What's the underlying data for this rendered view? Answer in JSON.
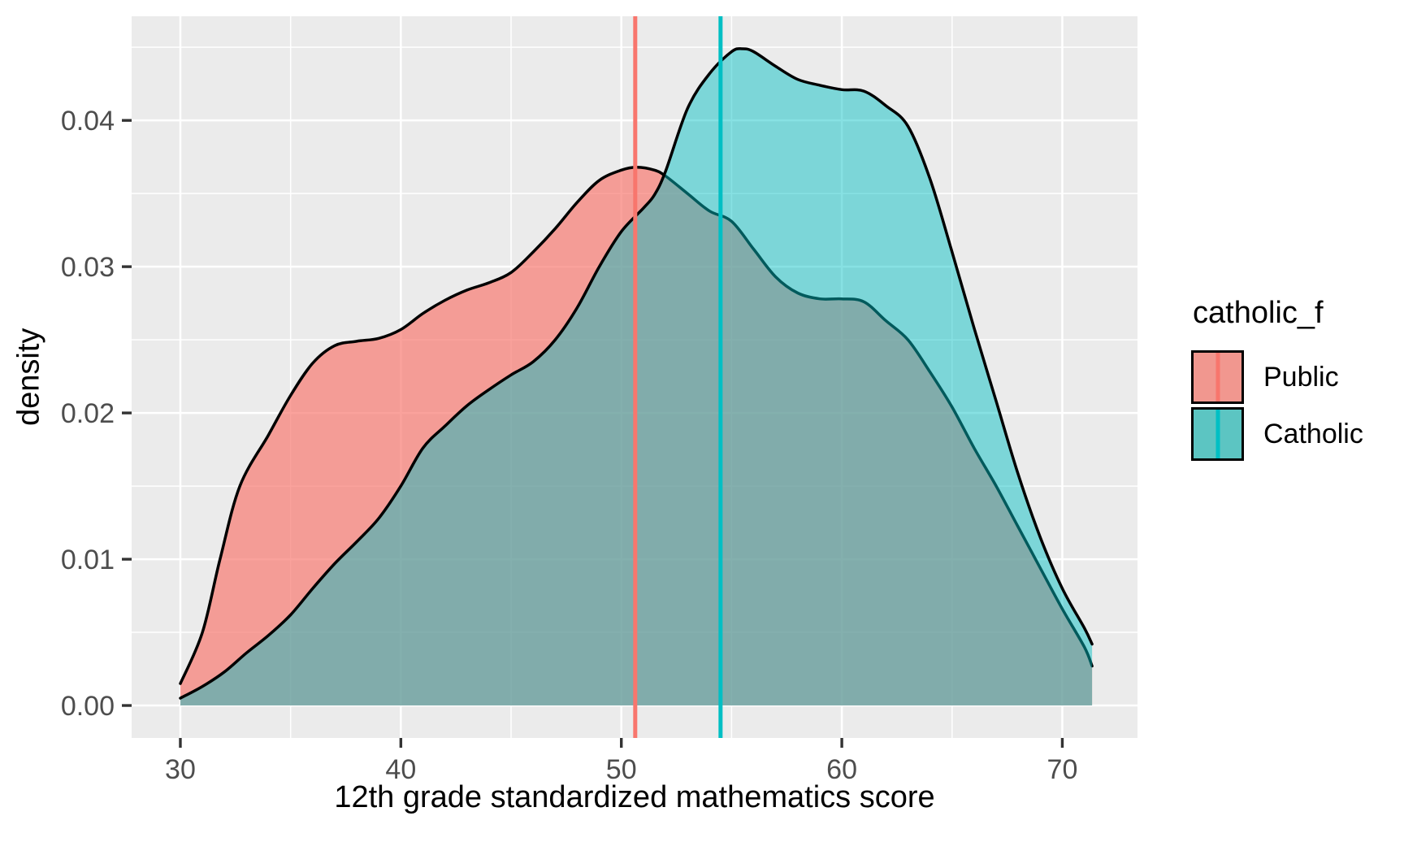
{
  "colors": {
    "panel_bg": "#EBEBEB",
    "grid": "#FFFFFF",
    "tick_mark": "#333333",
    "tick_label": "#4D4D4D",
    "curve_stroke": "#000000",
    "public_accent": "#F8766D",
    "catholic_accent": "#00BFC4",
    "public_fill": "rgba(248,118,109,0.68)",
    "catholic_fill": "rgba(0,191,196,0.47)"
  },
  "x_axis": {
    "title": "12th grade standardized mathematics score",
    "tick_labels": [
      "30",
      "40",
      "50",
      "60",
      "70"
    ]
  },
  "y_axis": {
    "title": "density",
    "tick_labels": [
      "0.00",
      "0.01",
      "0.02",
      "0.03",
      "0.04"
    ]
  },
  "legend": {
    "title": "catholic_f",
    "items": [
      {
        "label": "Public",
        "key_fill": "#F1978F",
        "line_color": "#F8766D"
      },
      {
        "label": "Catholic",
        "key_fill": "#5CC5C2",
        "line_color": "#00BFC4"
      }
    ]
  },
  "chart_data": {
    "type": "area",
    "subtype": "density",
    "title": "",
    "xlabel": "12th grade standardized mathematics score",
    "ylabel": "density",
    "grid": true,
    "legend_position": "right",
    "x_ticks": [
      30,
      40,
      50,
      60,
      70
    ],
    "x_minor_ticks": [
      35,
      45,
      55,
      65
    ],
    "y_ticks": [
      0,
      0.01,
      0.02,
      0.03,
      0.04
    ],
    "y_minor_ticks": [
      0.005,
      0.015,
      0.025,
      0.035,
      0.045
    ],
    "xlim": [
      27.79,
      73.41
    ],
    "ylim": [
      -0.00222,
      0.04712
    ],
    "series": [
      {
        "name": "Public",
        "stroke": "#000000",
        "fill": "rgba(248,118,109,0.68)",
        "points": [
          [
            30,
            0.0015
          ],
          [
            31,
            0.005
          ],
          [
            31.8,
            0.01
          ],
          [
            32.7,
            0.015
          ],
          [
            34,
            0.0185
          ],
          [
            35,
            0.0212
          ],
          [
            36,
            0.0234
          ],
          [
            37,
            0.0246
          ],
          [
            38,
            0.0249
          ],
          [
            39,
            0.0251
          ],
          [
            40,
            0.0257
          ],
          [
            41,
            0.0268
          ],
          [
            42,
            0.0277
          ],
          [
            43,
            0.0284
          ],
          [
            44,
            0.0289
          ],
          [
            45,
            0.0296
          ],
          [
            46,
            0.031
          ],
          [
            47,
            0.0326
          ],
          [
            48,
            0.0344
          ],
          [
            49,
            0.0359
          ],
          [
            50,
            0.0366
          ],
          [
            50.7,
            0.0368
          ],
          [
            51.5,
            0.0366
          ],
          [
            52,
            0.0362
          ],
          [
            53,
            0.035
          ],
          [
            54,
            0.0338
          ],
          [
            55,
            0.0331
          ],
          [
            56,
            0.0312
          ],
          [
            57,
            0.0293
          ],
          [
            58,
            0.0282
          ],
          [
            59,
            0.0278
          ],
          [
            60,
            0.0278
          ],
          [
            61,
            0.0276
          ],
          [
            62,
            0.0263
          ],
          [
            63,
            0.025
          ],
          [
            64,
            0.0228
          ],
          [
            65,
            0.0204
          ],
          [
            66,
            0.0176
          ],
          [
            67,
            0.015
          ],
          [
            68,
            0.0122
          ],
          [
            69,
            0.0094
          ],
          [
            70,
            0.0066
          ],
          [
            71,
            0.004
          ],
          [
            71.35,
            0.0027
          ]
        ]
      },
      {
        "name": "Catholic",
        "stroke": "#000000",
        "fill": "rgba(0,191,196,0.47)",
        "points": [
          [
            30,
            0.0005
          ],
          [
            31,
            0.0013
          ],
          [
            32,
            0.0023
          ],
          [
            33,
            0.0036
          ],
          [
            34,
            0.0048
          ],
          [
            35,
            0.0062
          ],
          [
            36,
            0.008
          ],
          [
            37,
            0.0097
          ],
          [
            38,
            0.0112
          ],
          [
            39,
            0.0128
          ],
          [
            40,
            0.015
          ],
          [
            41,
            0.0176
          ],
          [
            42,
            0.0191
          ],
          [
            43,
            0.0205
          ],
          [
            44,
            0.0216
          ],
          [
            45,
            0.0226
          ],
          [
            46,
            0.0235
          ],
          [
            47,
            0.025
          ],
          [
            48,
            0.0272
          ],
          [
            49,
            0.03
          ],
          [
            50,
            0.0324
          ],
          [
            51,
            0.034
          ],
          [
            51.5,
            0.0349
          ],
          [
            52,
            0.0365
          ],
          [
            53,
            0.0408
          ],
          [
            54,
            0.0432
          ],
          [
            55,
            0.0447
          ],
          [
            55.5,
            0.0449
          ],
          [
            56,
            0.0447
          ],
          [
            57,
            0.0437
          ],
          [
            58,
            0.0428
          ],
          [
            59,
            0.0424
          ],
          [
            60,
            0.0421
          ],
          [
            61,
            0.042
          ],
          [
            62,
            0.041
          ],
          [
            63,
            0.0396
          ],
          [
            64,
            0.036
          ],
          [
            65,
            0.031
          ],
          [
            66,
            0.0258
          ],
          [
            67,
            0.0208
          ],
          [
            68,
            0.0158
          ],
          [
            69,
            0.0115
          ],
          [
            70,
            0.008
          ],
          [
            71,
            0.0053
          ],
          [
            71.35,
            0.0042
          ]
        ]
      }
    ],
    "vlines": [
      {
        "x": 50.63,
        "color": "#F8766D",
        "series": "Public"
      },
      {
        "x": 54.5,
        "color": "#00BFC4",
        "series": "Catholic"
      }
    ]
  }
}
